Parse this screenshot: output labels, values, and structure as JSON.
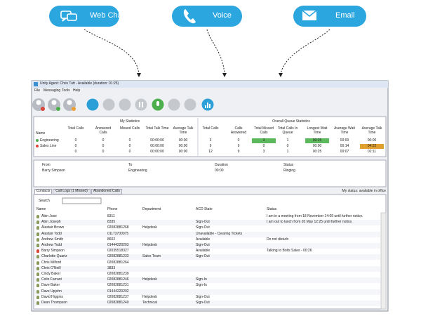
{
  "channels": [
    "Web Chat",
    "Voice",
    "Email"
  ],
  "window": {
    "title": "Unity Agent: Chris Tutt - Available (duration: 01:25)",
    "menu": [
      "File",
      "Messaging",
      "Tools",
      "Help"
    ]
  },
  "stats": {
    "group_headers": [
      "My Statistics",
      "Overall Queue Statistics"
    ],
    "columns": [
      "Name",
      "Total Calls",
      "Answered Calls",
      "Missed Calls",
      "Total Talk Time",
      "Average Talk Time",
      "Total Calls",
      "Calls Answered",
      "Total Missed Calls",
      "Total Calls In Queue",
      "Longest Wait Time",
      "Average Wait Time",
      "Average Talk Time"
    ],
    "rows": [
      {
        "name": "Engineering",
        "values": [
          "0",
          "0",
          "0",
          "00:00:00",
          "00:00",
          "3",
          "0",
          "3",
          "1",
          "00:25",
          "00:00",
          "00:00"
        ],
        "colors": [
          null,
          null,
          null,
          null,
          null,
          null,
          null,
          "#5cb85c",
          null,
          "#5cb85c",
          null,
          null
        ]
      },
      {
        "name": "Sales Line",
        "values": [
          "0",
          "0",
          "0",
          "00:00:00",
          "00:00",
          "9",
          "9",
          "0",
          "0",
          "00:00",
          "00:14",
          "04:22"
        ],
        "colors": [
          null,
          null,
          null,
          null,
          null,
          null,
          null,
          null,
          null,
          null,
          null,
          "#e0a030"
        ]
      }
    ],
    "total": [
      "0",
      "0",
      "0",
      "00:00:00",
      "00:00",
      "12",
      "9",
      "3",
      "1",
      "00:25",
      "00:07",
      "02:11"
    ]
  },
  "call": {
    "columns": [
      "From",
      "To",
      "Duration",
      "Status"
    ],
    "rows": [
      [
        "Barry Simpson",
        "Engineering",
        "00:00",
        "Ringing"
      ]
    ]
  },
  "tabs": [
    "Contacts",
    "Call Logs (1 Missed)",
    "Abandoned Calls"
  ],
  "my_status": "My status: available in office",
  "search_label": "Search",
  "contacts": {
    "columns": [
      "Name",
      "Phone",
      "Department",
      "ACD State",
      "Status"
    ],
    "rows": [
      {
        "name": "Abin Jose",
        "phone": "8311",
        "status": "I am in a meeting from 18 November 14:09 until further notice."
      },
      {
        "name": "Abin Joseph",
        "phone": "8335",
        "acd": "Sign-Out",
        "status": "I am out to lunch from 20 May 12:25 until further notice."
      },
      {
        "name": "Alastair Brown",
        "phone": "02082881268",
        "department": "Helpdesk",
        "acd": "Sign-Out"
      },
      {
        "name": "Alastair Todd",
        "phone": "01173700075",
        "acd": "Unavailable - Clearing Tickets"
      },
      {
        "name": "Andrew Smith",
        "phone": "8602",
        "acd": "Available",
        "status": "Do not disturb"
      },
      {
        "name": "Andrew Todd",
        "phone": "01444220203",
        "department": "Helpdesk",
        "acd": "Sign-Out"
      },
      {
        "name": "Barry Simpson",
        "phone": "02035518327",
        "acd": "Available",
        "status": "Talking to Bolts Sales - 00:26"
      },
      {
        "name": "Charlotte Quartz",
        "phone": "02082881233",
        "department": "Sales Team",
        "acd": "Sign-Out"
      },
      {
        "name": "Chris Milford",
        "phone": "02082881264"
      },
      {
        "name": "Chris O'Neill",
        "phone": "3833"
      },
      {
        "name": "Cindy Baker",
        "phone": "02082881239"
      },
      {
        "name": "Colin Farrant",
        "phone": "02082881246",
        "department": "Helpdesk",
        "acd": "Sign-In"
      },
      {
        "name": "Dave Baker",
        "phone": "02082881231",
        "acd": "Sign-In"
      },
      {
        "name": "Dave Upjohn",
        "phone": "01444220202"
      },
      {
        "name": "David Higgins",
        "phone": "02082881237",
        "department": "Helpdesk",
        "acd": "Sign-Out"
      },
      {
        "name": "Dean Thompson",
        "phone": "02082881240",
        "department": "Technical",
        "acd": "Sign-Out"
      }
    ]
  }
}
